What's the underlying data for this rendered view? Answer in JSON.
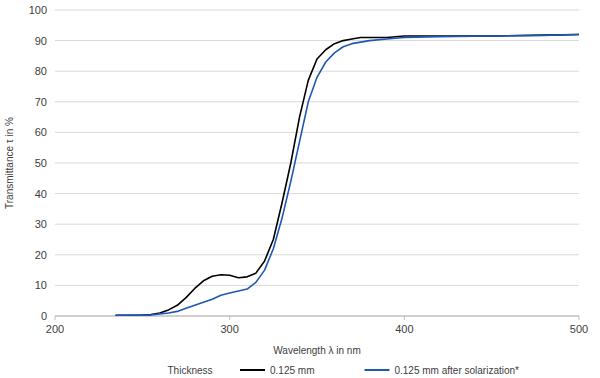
{
  "chart_data": {
    "type": "line",
    "x_label": "Wavelength λ in nm",
    "y_label": "Transmittance τ in %",
    "legend_title": "Thickness",
    "legend": "bottom",
    "grid": true,
    "xlim": [
      200,
      500
    ],
    "xticks": [
      200,
      300,
      400,
      500
    ],
    "ylim": [
      0,
      100
    ],
    "yticks": [
      0,
      10,
      20,
      30,
      40,
      50,
      60,
      70,
      80,
      90,
      100
    ],
    "x": [
      235,
      250,
      255,
      260,
      265,
      270,
      275,
      280,
      285,
      290,
      295,
      300,
      305,
      310,
      315,
      320,
      325,
      330,
      335,
      340,
      345,
      350,
      355,
      360,
      365,
      370,
      375,
      380,
      390,
      400,
      420,
      450,
      480,
      500
    ],
    "series": [
      {
        "name": "0.125 mm",
        "color": "#000000",
        "values": [
          0.2,
          0.3,
          0.5,
          1,
          2,
          3.5,
          6,
          9,
          11.5,
          13,
          13.5,
          13.3,
          12.5,
          12.8,
          14,
          18,
          25,
          37,
          50,
          65,
          77,
          84,
          87,
          89,
          90,
          90.5,
          91,
          91,
          91,
          91.5,
          91.5,
          91.5,
          91.8,
          92
        ]
      },
      {
        "name": "0.125 mm after solarization*",
        "color": "#1e58b4",
        "values": [
          0.2,
          0.3,
          0.3,
          0.7,
          1,
          1.5,
          2.5,
          3.5,
          4.5,
          5.5,
          6.8,
          7.5,
          8.2,
          8.8,
          11,
          15,
          22,
          32,
          44,
          57,
          70,
          78,
          83,
          86,
          88,
          89,
          89.5,
          90,
          90.5,
          91,
          91.3,
          91.5,
          91.7,
          92
        ]
      }
    ]
  }
}
